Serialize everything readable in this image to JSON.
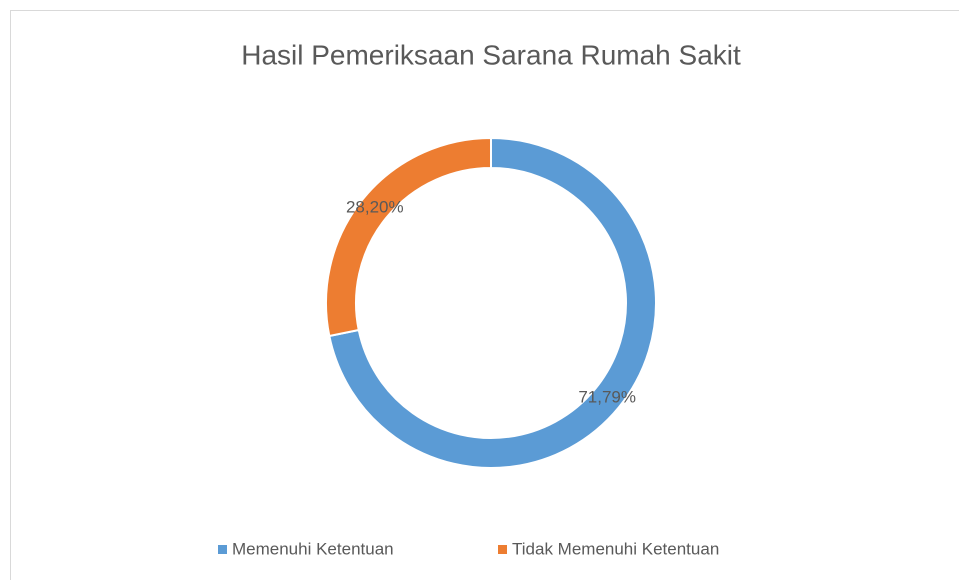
{
  "chart_data": {
    "type": "donut",
    "title": "Hasil Pemeriksaan Sarana Rumah Sakit",
    "categories": [
      "Memenuhi Ketentuan",
      "Tidak Memenuhi Ketentuan"
    ],
    "values": [
      71.79,
      28.2
    ],
    "value_labels": [
      "71,79%",
      "28,20%"
    ],
    "colors": [
      "#5b9bd5",
      "#ed7d31"
    ],
    "legend": "bottom"
  }
}
